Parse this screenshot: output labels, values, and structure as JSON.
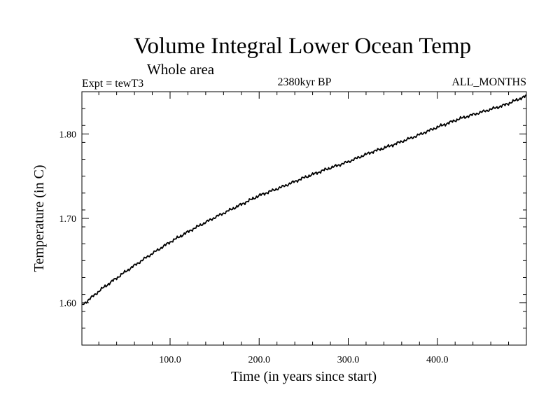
{
  "chart_data": {
    "type": "line",
    "title": "Volume Integral Lower Ocean Temp",
    "subtitle": "Whole area",
    "experiment": "Expt = tewT3",
    "period": "2380kyr BP",
    "season": "ALL_MONTHS",
    "xlabel": "Time (in years since start)",
    "ylabel": "Temperature (in C)",
    "xlim": [
      1,
      500
    ],
    "ylim": [
      1.55,
      1.85
    ],
    "x_ticks": [
      {
        "value": 100,
        "label": "100.0"
      },
      {
        "value": 200,
        "label": "200.0"
      },
      {
        "value": 300,
        "label": "300.0"
      },
      {
        "value": 400,
        "label": "400.0"
      }
    ],
    "y_ticks": [
      {
        "value": 1.6,
        "label": "1.60"
      },
      {
        "value": 1.7,
        "label": "1.70"
      },
      {
        "value": 1.8,
        "label": "1.80"
      }
    ],
    "series": [
      {
        "name": "tewT3",
        "x": [
          1,
          25,
          50,
          75,
          100,
          125,
          150,
          175,
          200,
          225,
          250,
          275,
          300,
          325,
          350,
          375,
          400,
          425,
          450,
          475,
          500
        ],
        "values": [
          1.597,
          1.618,
          1.637,
          1.655,
          1.672,
          1.687,
          1.701,
          1.714,
          1.727,
          1.737,
          1.748,
          1.758,
          1.767,
          1.778,
          1.787,
          1.797,
          1.808,
          1.818,
          1.826,
          1.834,
          1.845
        ]
      }
    ]
  }
}
